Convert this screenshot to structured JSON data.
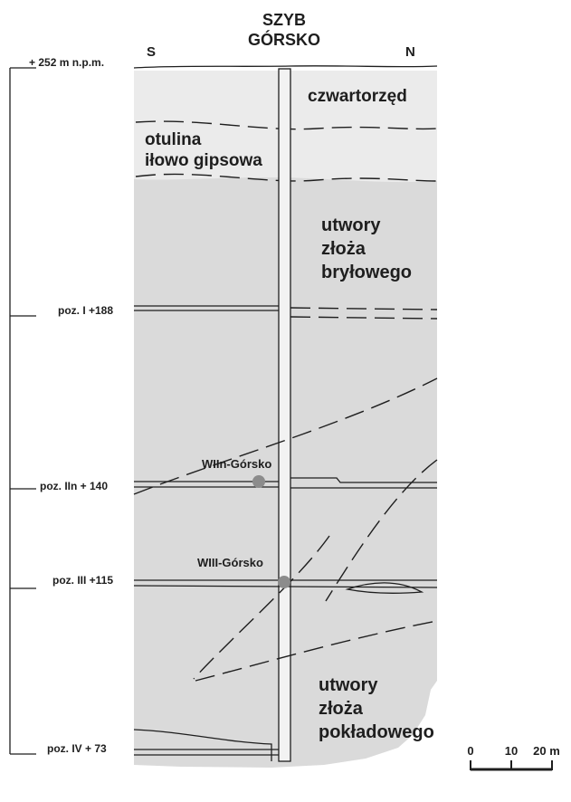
{
  "shaft": {
    "title_line1": "SZYB",
    "title_line2": "GÓRSKO",
    "side_left": "S",
    "side_right": "N"
  },
  "levels": [
    {
      "label": "+ 252 m n.p.m."
    },
    {
      "label": "poz. I +188"
    },
    {
      "label": "poz. IIn + 140"
    },
    {
      "label": "poz. III +115"
    },
    {
      "label": "poz. IV + 73"
    }
  ],
  "zones": {
    "czwartorzed": "czwartorzęd",
    "otulina_1": "otulina",
    "otulina_2": "iłowo gipsowa",
    "brylowe_1": "utwory",
    "brylowe_2": "złoża",
    "brylowe_3": "bryłowego",
    "pokladowe_1": "utwory",
    "pokladowe_2": "złoża",
    "pokladowe_3": "pokładowego"
  },
  "points": [
    {
      "label": "WIIn-Górsko",
      "color": "#8c8c8c"
    },
    {
      "label": "WIII-Górsko",
      "color": "#8c8c8c"
    }
  ],
  "scale_bar": {
    "ticks": [
      "0",
      "10",
      "20 m"
    ]
  },
  "colors": {
    "background_light": "#ebebeb",
    "background_main": "#dadada",
    "ink": "#1e1e1e"
  }
}
